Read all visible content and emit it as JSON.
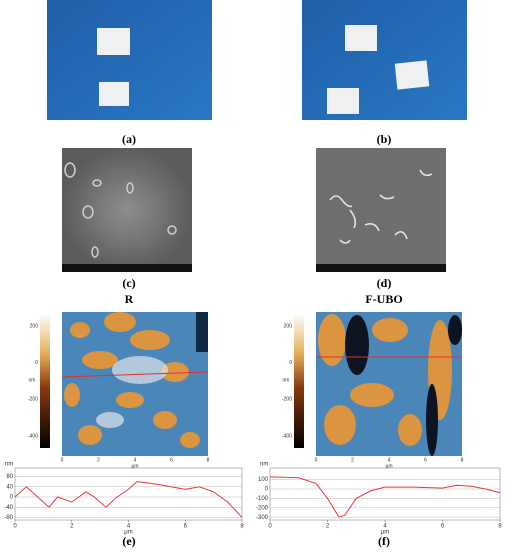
{
  "panels": {
    "a": "(a)",
    "b": "(b)",
    "c": "(c)",
    "d": "(d)",
    "e": "(e)",
    "f": "(f)"
  },
  "afm": {
    "left_title": "R",
    "right_title": "F-UBO",
    "left_colorbar_ticks": [
      "200",
      "0",
      "-200",
      "-400"
    ],
    "right_colorbar_ticks": [
      "200",
      "0",
      "-200",
      "-400"
    ],
    "colorbar_unit": "nm",
    "axis_ticks": [
      "0",
      "2",
      "4",
      "6",
      "8"
    ],
    "axis_unit": "μm"
  },
  "chart_data": [
    {
      "type": "line",
      "x_label": "μm",
      "y_label": "nm",
      "color": "#e8363f",
      "x": [
        0,
        0.4,
        0.8,
        1.2,
        1.5,
        2,
        2.5,
        2.8,
        3.2,
        3.6,
        4,
        4.3,
        4.7,
        5,
        5.5,
        6,
        6.5,
        7,
        7.5,
        8
      ],
      "values": [
        0,
        40,
        0,
        -40,
        0,
        -20,
        20,
        0,
        -40,
        0,
        30,
        60,
        55,
        50,
        40,
        30,
        40,
        20,
        -20,
        -80
      ],
      "xlim": [
        0,
        8
      ],
      "ylim": [
        -90,
        90
      ],
      "xticks": [
        0,
        2,
        4,
        6,
        8
      ],
      "yticks": [
        80,
        40,
        0,
        -40,
        -80
      ]
    },
    {
      "type": "line",
      "x_label": "μm",
      "y_label": "nm",
      "color": "#e8363f",
      "x": [
        0,
        0.5,
        1,
        1.6,
        2,
        2.4,
        2.6,
        3,
        3.5,
        4,
        5,
        6,
        6.5,
        7,
        7.5,
        8
      ],
      "values": [
        130,
        125,
        120,
        60,
        -100,
        -300,
        -280,
        -100,
        -20,
        20,
        20,
        10,
        40,
        30,
        0,
        -40
      ],
      "xlim": [
        0,
        8
      ],
      "ylim": [
        -330,
        160
      ],
      "xticks": [
        0,
        2,
        4,
        6,
        8
      ],
      "yticks": [
        100,
        0,
        -100,
        -200,
        -300
      ]
    }
  ]
}
